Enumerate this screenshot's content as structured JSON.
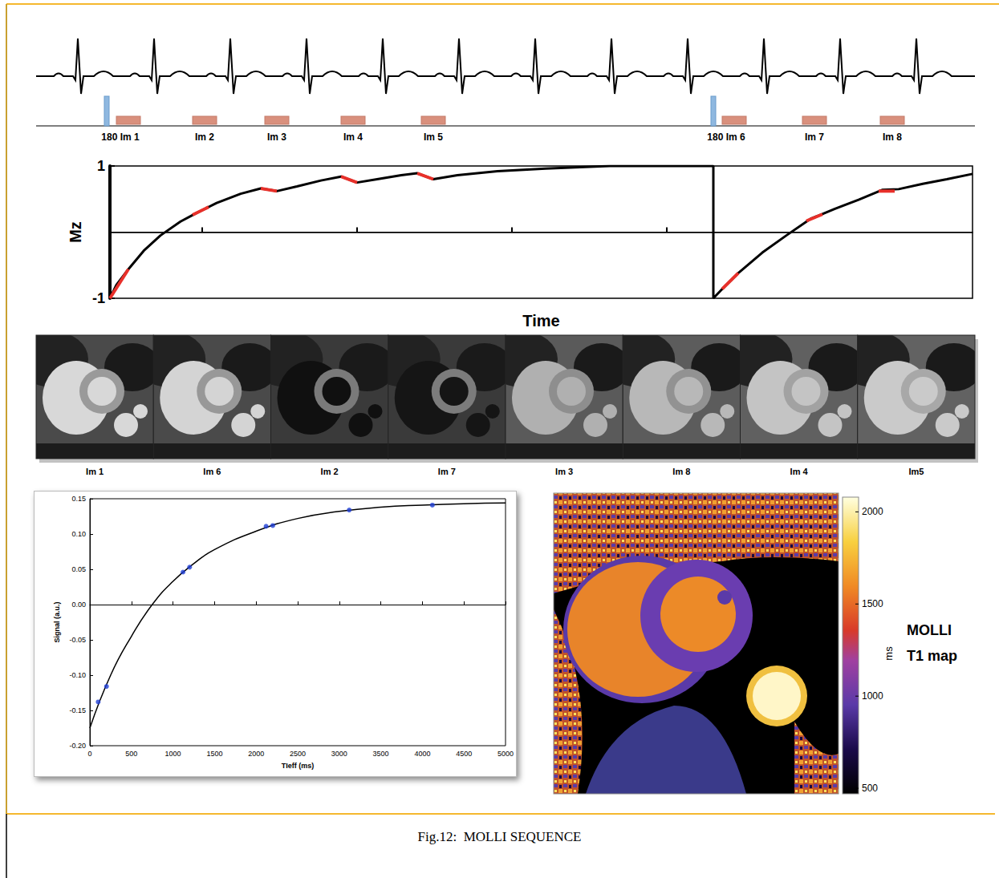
{
  "caption": "Fig.12:  MOLLI SEQUENCE",
  "timeline": {
    "labels": [
      "180 Im 1",
      "Im 2",
      "Im 3",
      "Im 4",
      "Im 5",
      "180 Im 6",
      "Im 7",
      "Im 8"
    ]
  },
  "images": {
    "labels": [
      "Im 1",
      "Im 6",
      "Im 2",
      "Im 7",
      "Im 3",
      "Im 8",
      "Im 4",
      "Im5"
    ]
  },
  "chart_data": [
    {
      "type": "line",
      "xlabel": "Time",
      "ylabel": "Mz",
      "color": "#000000",
      "x": [
        0,
        8,
        23,
        43,
        63,
        88,
        108,
        133,
        163,
        188,
        208,
        233,
        263,
        288,
        308,
        333,
        363,
        383,
        403,
        433,
        483,
        543,
        623,
        752,
        752,
        763,
        783,
        813,
        843,
        873,
        903,
        933,
        963,
        983,
        1013,
        1043,
        1075
      ],
      "values": [
        -1,
        -0.8,
        -0.56,
        -0.27,
        -0.05,
        0.16,
        0.29,
        0.44,
        0.58,
        0.66,
        0.62,
        0.69,
        0.78,
        0.84,
        0.75,
        0.8,
        0.86,
        0.89,
        0.8,
        0.86,
        0.92,
        0.96,
        1,
        1,
        -1,
        -0.86,
        -0.62,
        -0.31,
        -0.05,
        0.2,
        0.35,
        0.49,
        0.64,
        0.65,
        0.73,
        0.8,
        0.88
      ],
      "highlight_color": "#e8302a",
      "highlight_segments": [
        [
          [
            0,
            -1
          ],
          [
            23,
            -0.56
          ]
        ],
        [
          [
            103,
            0.26
          ],
          [
            123,
            0.38
          ]
        ],
        [
          [
            188,
            0.66
          ],
          [
            208,
            0.62
          ]
        ],
        [
          [
            288,
            0.84
          ],
          [
            308,
            0.75
          ]
        ],
        [
          [
            383,
            0.89
          ],
          [
            403,
            0.8
          ]
        ],
        [
          [
            763,
            -0.86
          ],
          [
            783,
            -0.62
          ]
        ],
        [
          [
            868,
            0.17
          ],
          [
            888,
            0.27
          ]
        ],
        [
          [
            958,
            0.62
          ],
          [
            978,
            0.62
          ]
        ]
      ],
      "reference_line": 0,
      "xlim": [
        0,
        1075
      ],
      "xticks": [
        115,
        308,
        501,
        694
      ],
      "ylim": [
        -1,
        1
      ],
      "yticks": [
        -1,
        1
      ],
      "tick_labels": "y",
      "grid": false
    },
    {
      "type": "scatter",
      "xlabel": "TIeff (ms)",
      "ylabel": "Signal (a.u.)",
      "x": [
        100,
        200,
        1120,
        1200,
        2120,
        2200,
        3120,
        4120
      ],
      "values": [
        -0.138,
        -0.116,
        0.046,
        0.053,
        0.111,
        0.112,
        0.134,
        0.141
      ],
      "color": "#1f3fd6",
      "marker": "circle",
      "fit_x": [
        0,
        250,
        500,
        750,
        1000,
        1250,
        1500,
        2000,
        2500,
        3000,
        3500,
        4000,
        4500,
        5000
      ],
      "fit_values": [
        -0.175,
        -0.1,
        -0.045,
        0.0,
        0.033,
        0.058,
        0.078,
        0.104,
        0.122,
        0.132,
        0.138,
        0.141,
        0.143,
        0.144
      ],
      "fit_color": "#000000",
      "line_style": "solid",
      "xlim": [
        0,
        5000
      ],
      "xticks": [
        0,
        500,
        1000,
        1500,
        2000,
        2500,
        3000,
        3500,
        4000,
        4500,
        5000
      ],
      "ylim": [
        -0.2,
        0.15
      ],
      "yticks": [
        {
          "value": -0.2,
          "label": "-0.20"
        },
        -0.15,
        {
          "value": -0.1,
          "label": "-0.10"
        },
        -0.05,
        {
          "value": 0,
          "label": "0.00"
        },
        0.05,
        {
          "value": 0.1,
          "label": "0.10"
        },
        0.15
      ],
      "grid": false
    }
  ],
  "t1_map": {
    "title": "MOLLI T1 map",
    "colorbar_range": [
      470,
      2080
    ],
    "colorbar_ticks": [
      500,
      1000,
      1500,
      2000
    ],
    "colorbar_label": "ms"
  }
}
